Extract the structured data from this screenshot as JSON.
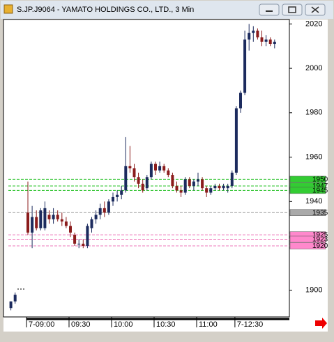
{
  "window_title": "S.JP.J9064 - YAMATO HOLDINGS CO., LTD., 3 Min",
  "chart_data": {
    "type": "candlestick",
    "categories": [
      null,
      null,
      null,
      null,
      "7-09:00",
      null,
      null,
      null,
      null,
      null,
      null,
      null,
      null,
      null,
      "09:30",
      null,
      null,
      null,
      null,
      null,
      null,
      null,
      null,
      null,
      "10:00",
      null,
      null,
      null,
      null,
      null,
      null,
      null,
      null,
      null,
      "10:30",
      null,
      null,
      null,
      null,
      null,
      null,
      null,
      null,
      null,
      "11:00",
      null,
      null,
      null,
      null,
      null,
      null,
      null,
      null,
      "7-12:30",
      null,
      null,
      null,
      null,
      null,
      null,
      null,
      null,
      null
    ],
    "open": [
      1892,
      1895,
      null,
      null,
      1935,
      1926,
      1933,
      1928,
      1928,
      1934,
      1932,
      1934,
      1932,
      1931,
      1929,
      1925,
      1921,
      1921,
      1920,
      1928,
      1932,
      1934,
      1937,
      1935,
      1940,
      1942,
      1943,
      1945,
      1956,
      1955,
      1951,
      1948,
      1946,
      1951,
      1957,
      1954,
      1956,
      1954,
      1952,
      1947,
      1945,
      1944,
      1950,
      1947,
      1949,
      1950,
      1946,
      1944,
      1946,
      1947,
      1946,
      1946,
      1947,
      1953,
      1982,
      1989,
      2013,
      2016,
      2017,
      2014,
      2012,
      2013,
      2011
    ],
    "high": [
      1895,
      1899,
      null,
      null,
      1949,
      1938,
      1936,
      1937,
      1940,
      1936,
      1937,
      1936,
      1935,
      1933,
      1931,
      1926,
      1923,
      1923,
      1930,
      1933,
      1936,
      1939,
      1940,
      1941,
      1944,
      1945,
      1947,
      1969,
      1965,
      1957,
      1953,
      1950,
      1952,
      1958,
      1958,
      1958,
      1957,
      1955,
      1953,
      1949,
      1947,
      1951,
      1951,
      1950,
      1953,
      1951,
      1947,
      1947,
      1948,
      1948,
      1948,
      1948,
      1954,
      1983,
      1990,
      2017,
      2020,
      2019,
      2018,
      2017,
      2015,
      2014,
      2013
    ],
    "low": [
      1891,
      1894,
      null,
      null,
      1925,
      1919,
      1927,
      1927,
      1927,
      1930,
      1930,
      1931,
      1929,
      1928,
      1924,
      1920,
      1919,
      1919,
      1919,
      1926,
      1930,
      1932,
      1933,
      1934,
      1938,
      1940,
      1941,
      1944,
      1953,
      1949,
      1946,
      1944,
      1945,
      1950,
      1952,
      1953,
      1953,
      1951,
      1946,
      1944,
      1942,
      1943,
      1946,
      1945,
      1947,
      1945,
      1942,
      1943,
      1945,
      1945,
      1945,
      1944,
      1946,
      1952,
      1980,
      1988,
      2008,
      2012,
      2013,
      2010,
      2010,
      2010,
      2009
    ],
    "close": [
      1895,
      1898,
      null,
      null,
      1926,
      1933,
      1928,
      1936,
      1937,
      1932,
      1934,
      1932,
      1931,
      1929,
      1926,
      1921,
      1921,
      1920,
      1929,
      1932,
      1934,
      1937,
      1935,
      1940,
      1942,
      1943,
      1945,
      1956,
      1955,
      1951,
      1948,
      1945,
      1951,
      1957,
      1954,
      1956,
      1954,
      1952,
      1947,
      1945,
      1944,
      1950,
      1947,
      1949,
      1950,
      1946,
      1944,
      1946,
      1947,
      1946,
      1947,
      1947,
      1953,
      1982,
      1989,
      2013,
      2016,
      2017,
      2014,
      2012,
      2013,
      2011,
      2012
    ],
    "up_color": "#1c2b5e",
    "down_color": "#8b1c1c",
    "ylim": [
      1888,
      2022
    ],
    "yticks": [
      1900,
      1940,
      1960,
      1980,
      2000,
      2020
    ],
    "levels": [
      {
        "value": 1950,
        "color": "#22c022",
        "box": "#33cc33"
      },
      {
        "value": 1947,
        "color": "#22c022",
        "box": "#33cc33"
      },
      {
        "value": 1945,
        "color": "#22c022",
        "box": "#33cc33"
      },
      {
        "value": 1935,
        "color": "#999999",
        "box": "#aaaaaa"
      },
      {
        "value": 1925,
        "color": "#ee77bb",
        "box": "#ff88cc"
      },
      {
        "value": 1923,
        "color": "#ee77bb",
        "box": "#ff88cc"
      },
      {
        "value": 1920,
        "color": "#ee77bb",
        "box": "#ff88cc"
      }
    ]
  }
}
